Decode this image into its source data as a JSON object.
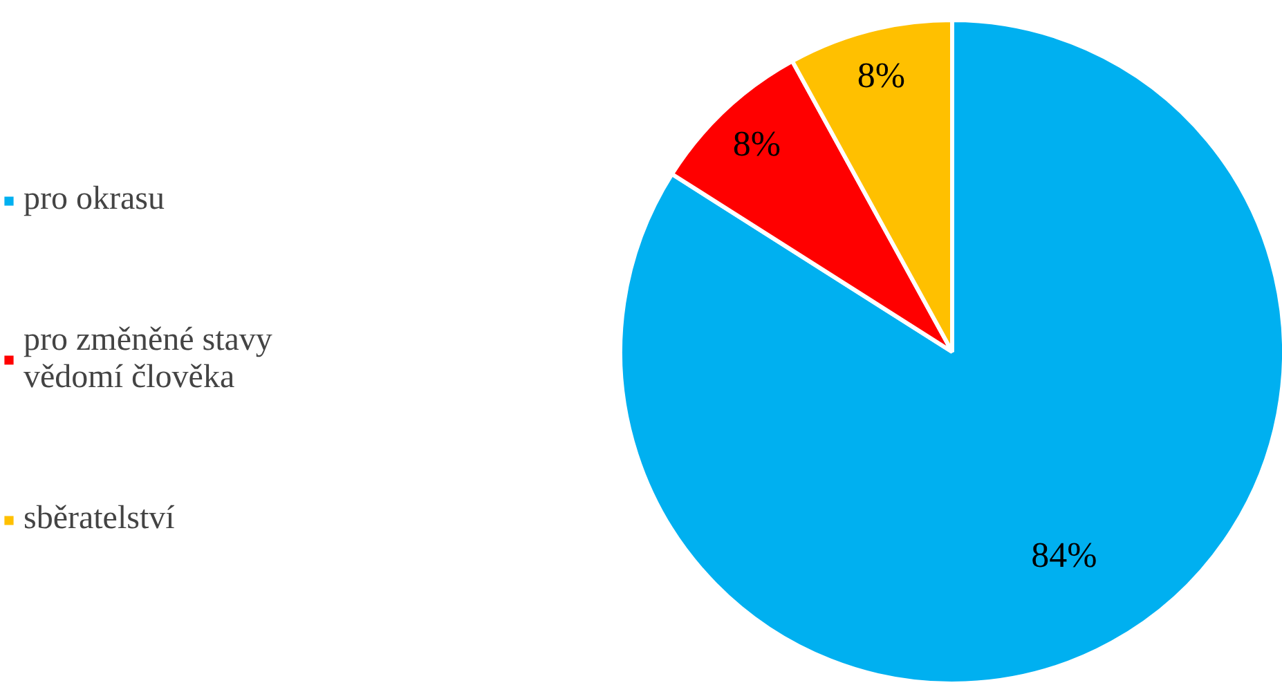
{
  "chart_data": {
    "type": "pie",
    "categories": [
      "pro okrasu",
      "pro změněné stavy vědomí člověka",
      "sběratelství"
    ],
    "values": [
      84,
      8,
      8
    ],
    "colors": [
      "#00b0f0",
      "#ff0000",
      "#ffc000"
    ],
    "value_labels": [
      "84%",
      "8%",
      "8%"
    ],
    "legend": "left"
  }
}
